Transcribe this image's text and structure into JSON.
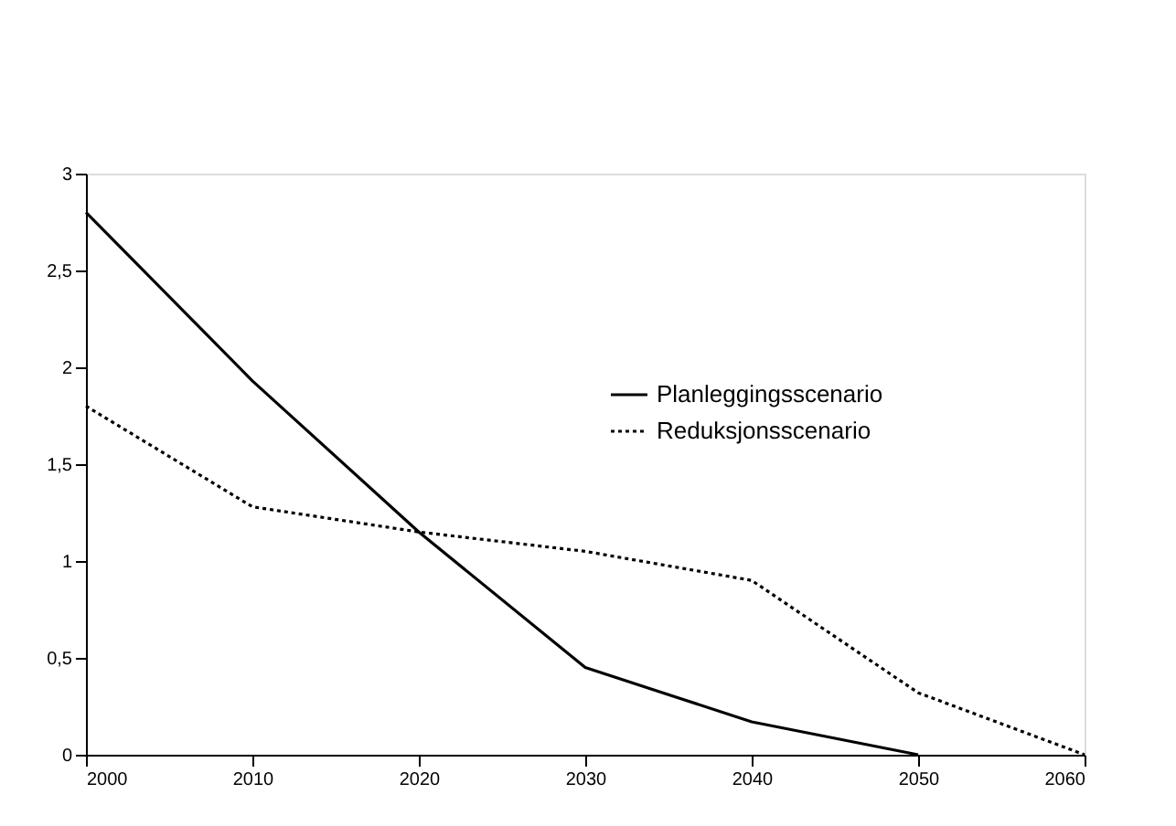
{
  "chart_data": {
    "type": "line",
    "x": [
      2000,
      2010,
      2020,
      2030,
      2040,
      2050,
      2060
    ],
    "series": [
      {
        "name": "Planleggingsscenario",
        "color": "#000000",
        "line_style": "solid",
        "values": [
          2.8,
          1.93,
          1.15,
          0.45,
          0.17,
          0,
          null
        ]
      },
      {
        "name": "Reduksjonsscenario",
        "color": "#000000",
        "line_style": "dotted",
        "values": [
          1.8,
          1.28,
          1.15,
          1.05,
          0.9,
          0.32,
          0
        ]
      }
    ],
    "xlim": [
      2000,
      2060
    ],
    "xticks": [
      2000,
      2010,
      2020,
      2030,
      2040,
      2050,
      2060
    ],
    "ylim": [
      0,
      3
    ],
    "yticks": [
      0,
      {
        "value": 0.5,
        "label": "0,5"
      },
      1,
      {
        "value": 1.5,
        "label": "1,5"
      },
      2,
      {
        "value": 2.5,
        "label": "2,5"
      },
      3
    ],
    "grid": false,
    "legend": "top right",
    "marker": "none"
  }
}
